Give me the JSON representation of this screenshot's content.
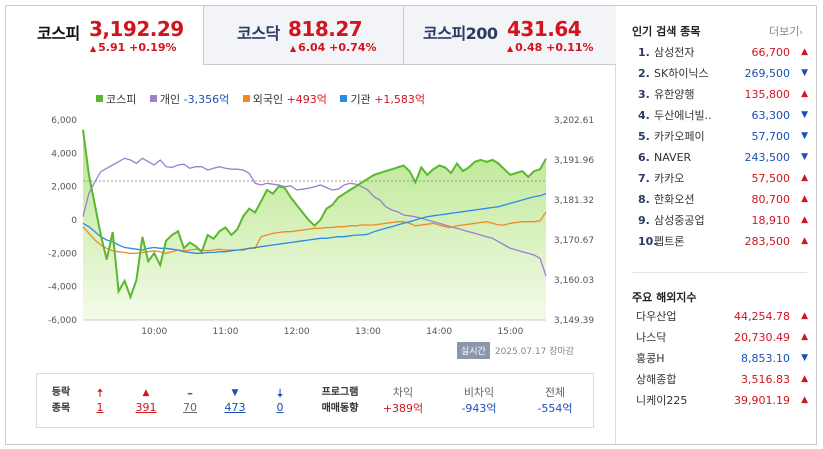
{
  "tabs": [
    {
      "name": "코스피",
      "value": "3,192.29",
      "change": "5.91 +0.19%",
      "active": true
    },
    {
      "name": "코스닥",
      "value": "818.27",
      "change": "6.04 +0.74%",
      "active": false
    },
    {
      "name": "코스피200",
      "value": "431.64",
      "change": "0.48 +0.11%",
      "active": false
    }
  ],
  "legend": [
    {
      "name": "코스피",
      "value": "",
      "color": "#5bb82e"
    },
    {
      "name": "개인",
      "value": "-3,356억",
      "color": "#9b7fd1"
    },
    {
      "name": "외국인",
      "value": "+493억",
      "color": "#f08a24"
    },
    {
      "name": "기관",
      "value": "+1,583억",
      "color": "#2d8be6"
    }
  ],
  "realtime": {
    "badge": "실시간",
    "date": "2025.07.17 장마감"
  },
  "chart_data": {
    "type": "line",
    "left_axis_ticks": [
      "6,000",
      "4,000",
      "2,000",
      "0",
      "-2,000",
      "-4,000",
      "-6,000"
    ],
    "right_axis_ticks": [
      "3,202.61",
      "3,191.96",
      "3,181.32",
      "3,170.67",
      "3,160.03",
      "3,149.39"
    ],
    "x_ticks": [
      "10:00",
      "11:00",
      "12:00",
      "13:00",
      "14:00",
      "15:00"
    ],
    "ylim_left": [
      -6000,
      6000
    ],
    "ylim_right": [
      3149.39,
      3202.61
    ],
    "previous_close": 3186.38,
    "x": [
      "09:00",
      "09:05",
      "09:10",
      "09:15",
      "09:20",
      "09:25",
      "09:30",
      "09:35",
      "09:40",
      "09:45",
      "09:50",
      "09:55",
      "10:00",
      "10:05",
      "10:10",
      "10:15",
      "10:20",
      "10:25",
      "10:30",
      "10:35",
      "10:40",
      "10:45",
      "10:50",
      "10:55",
      "11:00",
      "11:05",
      "11:10",
      "11:15",
      "11:20",
      "11:25",
      "11:30",
      "11:35",
      "11:40",
      "11:45",
      "11:50",
      "11:55",
      "12:00",
      "12:05",
      "12:10",
      "12:15",
      "12:20",
      "12:25",
      "12:30",
      "12:35",
      "12:40",
      "12:45",
      "12:50",
      "12:55",
      "13:00",
      "13:05",
      "13:10",
      "13:15",
      "13:20",
      "13:25",
      "13:30",
      "13:35",
      "13:40",
      "13:45",
      "13:50",
      "13:55",
      "14:00",
      "14:05",
      "14:10",
      "14:15",
      "14:20",
      "14:25",
      "14:30",
      "14:35",
      "14:40",
      "14:45",
      "14:50",
      "14:55",
      "15:00",
      "15:05",
      "15:10",
      "15:15",
      "15:20",
      "15:25",
      "15:30"
    ],
    "series": [
      {
        "name": "코스피",
        "axis": "right",
        "values": [
          3200.0,
          3188.0,
          3180.0,
          3172.0,
          3165.5,
          3172.8,
          3157.0,
          3159.8,
          3155.5,
          3160.0,
          3171.5,
          3165.0,
          3167.2,
          3164.0,
          3170.5,
          3172.0,
          3173.0,
          3168.5,
          3170.0,
          3169.0,
          3167.5,
          3172.0,
          3171.0,
          3173.0,
          3174.0,
          3172.0,
          3173.5,
          3177.0,
          3179.0,
          3178.0,
          3181.0,
          3184.0,
          3183.0,
          3185.0,
          3184.5,
          3182.0,
          3180.0,
          3178.0,
          3176.0,
          3174.5,
          3176.0,
          3179.0,
          3180.0,
          3182.0,
          3183.0,
          3184.0,
          3185.0,
          3186.0,
          3187.0,
          3188.0,
          3188.5,
          3189.0,
          3189.5,
          3190.0,
          3190.5,
          3189.0,
          3186.0,
          3190.0,
          3188.0,
          3189.5,
          3190.5,
          3190.0,
          3188.5,
          3191.0,
          3189.0,
          3190.0,
          3191.5,
          3192.0,
          3191.5,
          3192.0,
          3191.0,
          3189.5,
          3188.0,
          3188.5,
          3189.0,
          3187.5,
          3189.0,
          3189.5,
          3192.3
        ]
      },
      {
        "name": "개인",
        "axis": "left",
        "values": [
          200,
          1600,
          2300,
          2900,
          3100,
          3300,
          3500,
          3700,
          3600,
          3400,
          3700,
          3500,
          3300,
          3600,
          3200,
          3150,
          3300,
          3350,
          3100,
          3200,
          3200,
          3000,
          3100,
          3200,
          3100,
          3050,
          3050,
          3000,
          2800,
          2200,
          2100,
          2200,
          2150,
          2100,
          2000,
          2050,
          1800,
          1850,
          1900,
          2000,
          2100,
          1950,
          1800,
          1850,
          2100,
          2200,
          2150,
          2000,
          1800,
          1400,
          1200,
          800,
          600,
          500,
          300,
          250,
          200,
          100,
          0,
          -100,
          -200,
          -300,
          -400,
          -500,
          -600,
          -700,
          -800,
          -900,
          -1000,
          -1100,
          -1300,
          -1500,
          -1700,
          -1800,
          -1900,
          -2000,
          -2100,
          -2300,
          -3356
        ]
      },
      {
        "name": "외국인",
        "axis": "left",
        "values": [
          -400,
          -800,
          -1200,
          -1500,
          -1700,
          -1850,
          -1900,
          -1950,
          -2000,
          -2000,
          -1950,
          -1900,
          -1850,
          -1900,
          -2000,
          -1900,
          -1800,
          -1850,
          -1800,
          -1750,
          -1800,
          -1850,
          -1800,
          -1750,
          -1800,
          -1800,
          -1800,
          -1750,
          -1700,
          -1700,
          -1000,
          -900,
          -800,
          -750,
          -700,
          -700,
          -650,
          -600,
          -550,
          -500,
          -500,
          -450,
          -450,
          -400,
          -400,
          -350,
          -350,
          -300,
          -300,
          -300,
          -250,
          -200,
          -150,
          -100,
          -100,
          -200,
          -350,
          -300,
          -250,
          -200,
          -300,
          -400,
          -450,
          -350,
          -300,
          -250,
          -200,
          -150,
          -100,
          -200,
          -300,
          -300,
          -200,
          -150,
          -100,
          -100,
          -100,
          -50,
          493
        ]
      },
      {
        "name": "기관",
        "axis": "left",
        "values": [
          -200,
          -400,
          -700,
          -1000,
          -1200,
          -1300,
          -1500,
          -1650,
          -1700,
          -1750,
          -1800,
          -1700,
          -1650,
          -1700,
          -1700,
          -1750,
          -1800,
          -1900,
          -1950,
          -2000,
          -2000,
          -1950,
          -1950,
          -1900,
          -1900,
          -1850,
          -1800,
          -1800,
          -1700,
          -1650,
          -1600,
          -1550,
          -1500,
          -1450,
          -1400,
          -1350,
          -1300,
          -1250,
          -1200,
          -1150,
          -1100,
          -1100,
          -1050,
          -1000,
          -1000,
          -950,
          -900,
          -900,
          -850,
          -700,
          -600,
          -500,
          -400,
          -300,
          -200,
          -100,
          0,
          100,
          200,
          250,
          300,
          350,
          400,
          450,
          500,
          550,
          600,
          650,
          700,
          750,
          800,
          900,
          1000,
          1100,
          1200,
          1300,
          1400,
          1450,
          1583
        ]
      }
    ]
  },
  "breadth": {
    "label1": "등락",
    "label2": "종목",
    "items": [
      {
        "icon": "upper-limit-icon",
        "value": "1",
        "color": "red"
      },
      {
        "icon": "rise-icon",
        "value": "391",
        "color": "red"
      },
      {
        "icon": "flat-icon",
        "value": "70",
        "color": "gray"
      },
      {
        "icon": "fall-icon",
        "value": "473",
        "color": "blue"
      },
      {
        "icon": "lower-limit-icon",
        "value": "0",
        "color": "blue"
      }
    ]
  },
  "program": {
    "label1": "프로그램",
    "label2": "매매동향",
    "cols": [
      {
        "head": "차익",
        "value": "+389억",
        "color": "red"
      },
      {
        "head": "비차익",
        "value": "-943억",
        "color": "blue"
      },
      {
        "head": "전체",
        "value": "-554억",
        "color": "blue"
      }
    ]
  },
  "popular": {
    "title": "인기 검색 종목",
    "more": "더보기",
    "items": [
      {
        "rank": "1.",
        "name": "삼성전자",
        "price": "66,700",
        "dir": "up"
      },
      {
        "rank": "2.",
        "name": "SK하이닉스",
        "price": "269,500",
        "dir": "down"
      },
      {
        "rank": "3.",
        "name": "유한양행",
        "price": "135,800",
        "dir": "up"
      },
      {
        "rank": "4.",
        "name": "두산에너빌..",
        "price": "63,300",
        "dir": "down"
      },
      {
        "rank": "5.",
        "name": "카카오페이",
        "price": "57,700",
        "dir": "down"
      },
      {
        "rank": "6.",
        "name": "NAVER",
        "price": "243,500",
        "dir": "down"
      },
      {
        "rank": "7.",
        "name": "카카오",
        "price": "57,500",
        "dir": "up"
      },
      {
        "rank": "8.",
        "name": "한화오션",
        "price": "80,700",
        "dir": "up"
      },
      {
        "rank": "9.",
        "name": "삼성중공업",
        "price": "18,910",
        "dir": "up"
      },
      {
        "rank": "10.",
        "name": "펩트론",
        "price": "283,500",
        "dir": "up"
      }
    ]
  },
  "foreign": {
    "title": "주요 해외지수",
    "items": [
      {
        "name": "다우산업",
        "value": "44,254.78",
        "dir": "up"
      },
      {
        "name": "나스닥",
        "value": "20,730.49",
        "dir": "up"
      },
      {
        "name": "홍콩H",
        "value": "8,853.10",
        "dir": "down"
      },
      {
        "name": "상해종합",
        "value": "3,516.83",
        "dir": "up"
      },
      {
        "name": "니케이225",
        "value": "39,901.19",
        "dir": "up"
      }
    ]
  }
}
